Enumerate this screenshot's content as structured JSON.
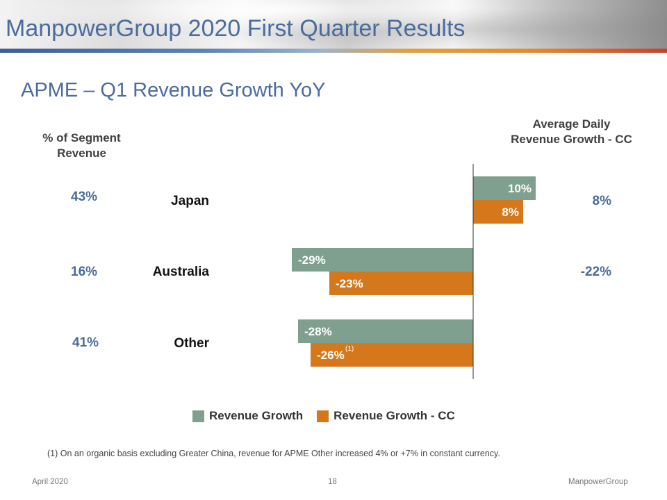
{
  "header": {
    "title": "ManpowerGroup 2020 First Quarter Results"
  },
  "subtitle": "APME – Q1 Revenue Growth YoY",
  "left_column": {
    "header_line1": "% of Segment",
    "header_line2": "Revenue",
    "values": [
      "43%",
      "16%",
      "41%"
    ]
  },
  "right_column": {
    "header_line1": "Average Daily",
    "header_line2": "Revenue Growth - CC",
    "values": [
      "8%",
      "-22%",
      ""
    ]
  },
  "colors": {
    "revenue_growth": "#7f9f8f",
    "revenue_growth_cc": "#d5781b",
    "text_accent": "#4a6c9c"
  },
  "chart_data": {
    "type": "bar",
    "orientation": "horizontal",
    "categories": [
      "Japan",
      "Australia",
      "Other"
    ],
    "series": [
      {
        "name": "Revenue Growth",
        "values": [
          10,
          -29,
          -28
        ],
        "labels": [
          "10%",
          "-29%",
          "-28%"
        ]
      },
      {
        "name": "Revenue Growth - CC",
        "values": [
          8,
          -23,
          -26
        ],
        "labels": [
          "8%",
          "-23%",
          "-26%"
        ]
      }
    ],
    "annotations": [
      {
        "category": "Other",
        "series": "Revenue Growth - CC",
        "text": "(1)"
      }
    ],
    "legend": "bottom"
  },
  "legend": {
    "item1": "Revenue Growth",
    "item2": "Revenue Growth - CC"
  },
  "footnote": "(1)  On an organic basis excluding Greater China, revenue for APME Other increased 4% or +7% in constant currency.",
  "footer": {
    "date": "April 2020",
    "page": "18",
    "company": "ManpowerGroup"
  }
}
